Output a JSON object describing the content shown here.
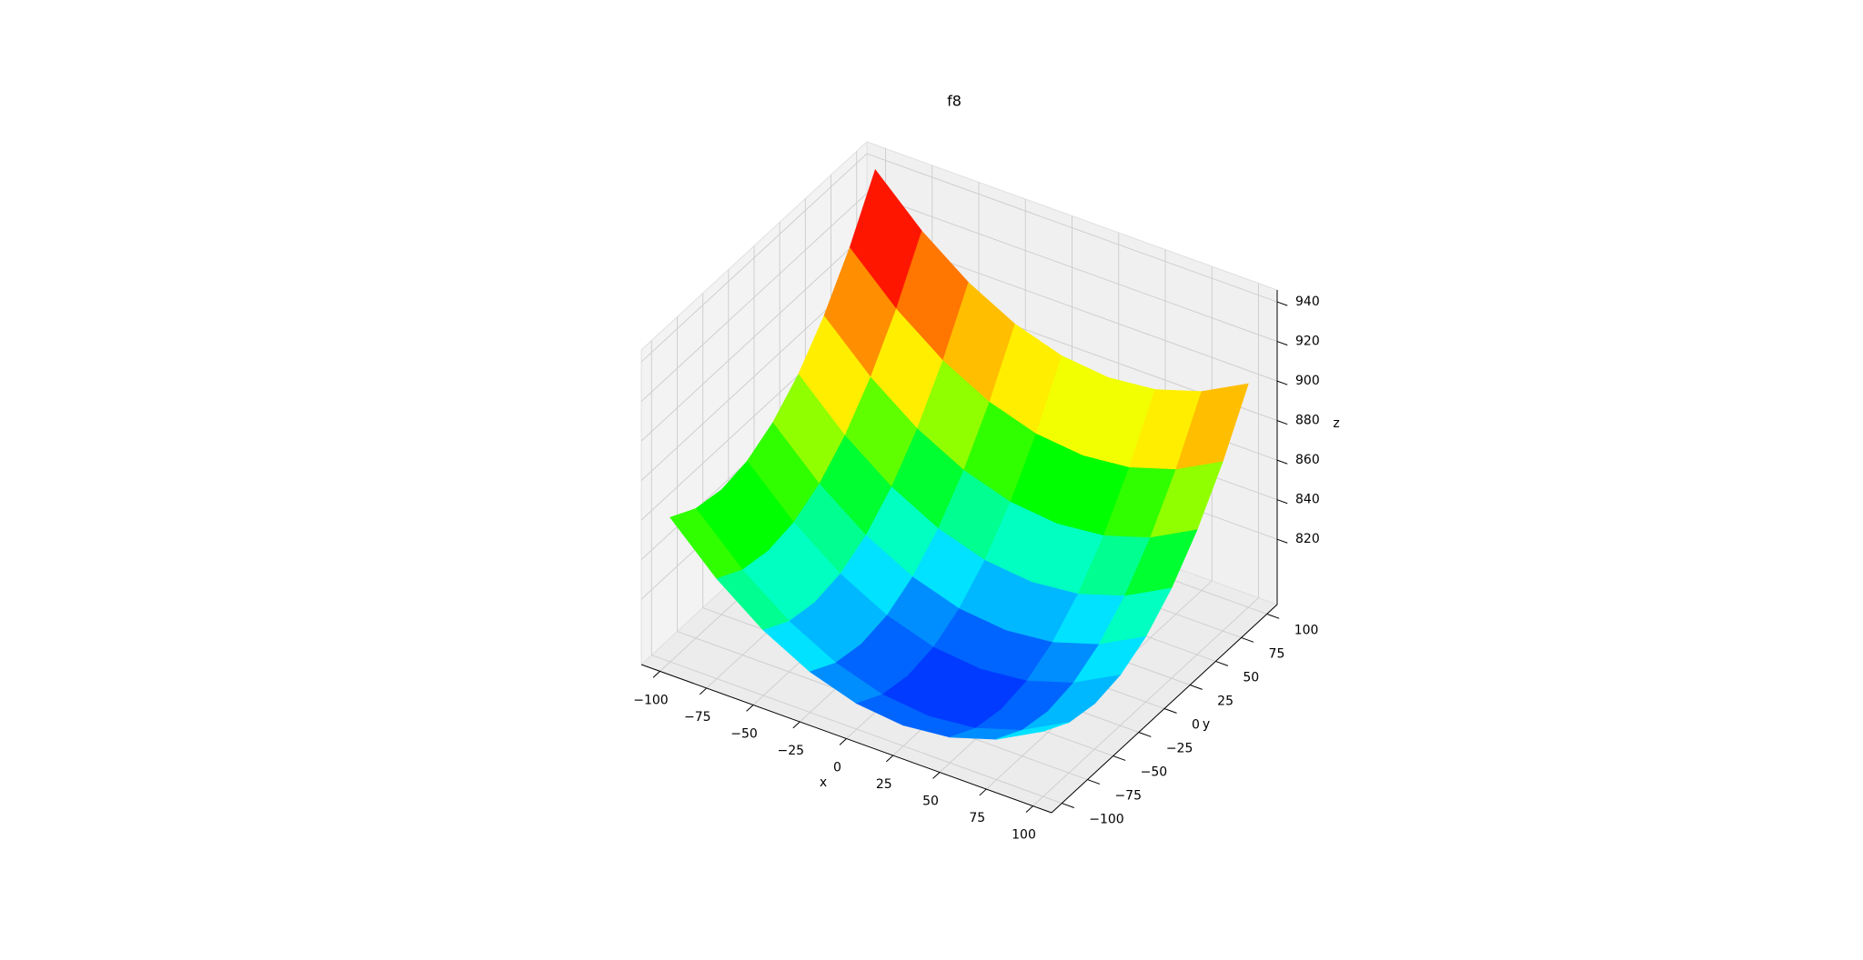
{
  "chart_data": {
    "type": "surface",
    "title": "f8",
    "xlabel": "x",
    "ylabel": "y",
    "zlabel": "z",
    "x": [
      -100,
      -75,
      -50,
      -25,
      0,
      25,
      50,
      75,
      100
    ],
    "y": [
      -100,
      -75,
      -50,
      -25,
      0,
      25,
      50,
      75,
      100
    ],
    "z": [
      [
        860,
        837.5,
        820,
        807.5,
        800,
        797.5,
        800,
        807.5,
        820
      ],
      [
        852.5,
        830,
        812.5,
        800,
        792.5,
        790,
        792.5,
        800,
        812.5
      ],
      [
        850,
        827.5,
        810,
        797.5,
        790,
        787.5,
        790,
        797.5,
        810
      ],
      [
        852.5,
        830,
        812.5,
        800,
        792.5,
        790,
        792.5,
        800,
        812.5
      ],
      [
        860,
        837.5,
        820,
        807.5,
        800,
        797.5,
        800,
        807.5,
        820
      ],
      [
        872.5,
        850,
        832.5,
        820,
        812.5,
        810,
        812.5,
        820,
        832.5
      ],
      [
        890,
        867.5,
        850,
        837.5,
        830,
        827.5,
        830,
        837.5,
        850
      ],
      [
        912.5,
        890,
        872.5,
        860,
        852.5,
        850,
        852.5,
        860,
        872.5
      ],
      [
        940,
        917.5,
        900,
        887.5,
        880,
        877.5,
        880,
        887.5,
        900
      ]
    ],
    "xlim": [
      -110,
      110
    ],
    "ylim": [
      -110,
      110
    ],
    "zlim": [
      787,
      946
    ],
    "xticks": [
      {
        "value": -100,
        "label": "−100"
      },
      {
        "value": -75,
        "label": "−75"
      },
      {
        "value": -50,
        "label": "−50"
      },
      {
        "value": -25,
        "label": "−25"
      },
      0,
      25,
      50,
      75,
      100
    ],
    "yticks": [
      {
        "value": -100,
        "label": "−100"
      },
      {
        "value": -75,
        "label": "−75"
      },
      {
        "value": -50,
        "label": "−50"
      },
      {
        "value": -25,
        "label": "−25"
      },
      0,
      25,
      50,
      75,
      100
    ],
    "zticks": [
      820,
      840,
      860,
      880,
      900,
      920,
      940
    ],
    "colormap": [
      "#0022ff",
      "#00ffff",
      "#00ff00",
      "#ffff00",
      "#ff8000",
      "#ff0000",
      "#ff00ff"
    ],
    "grid": true
  }
}
